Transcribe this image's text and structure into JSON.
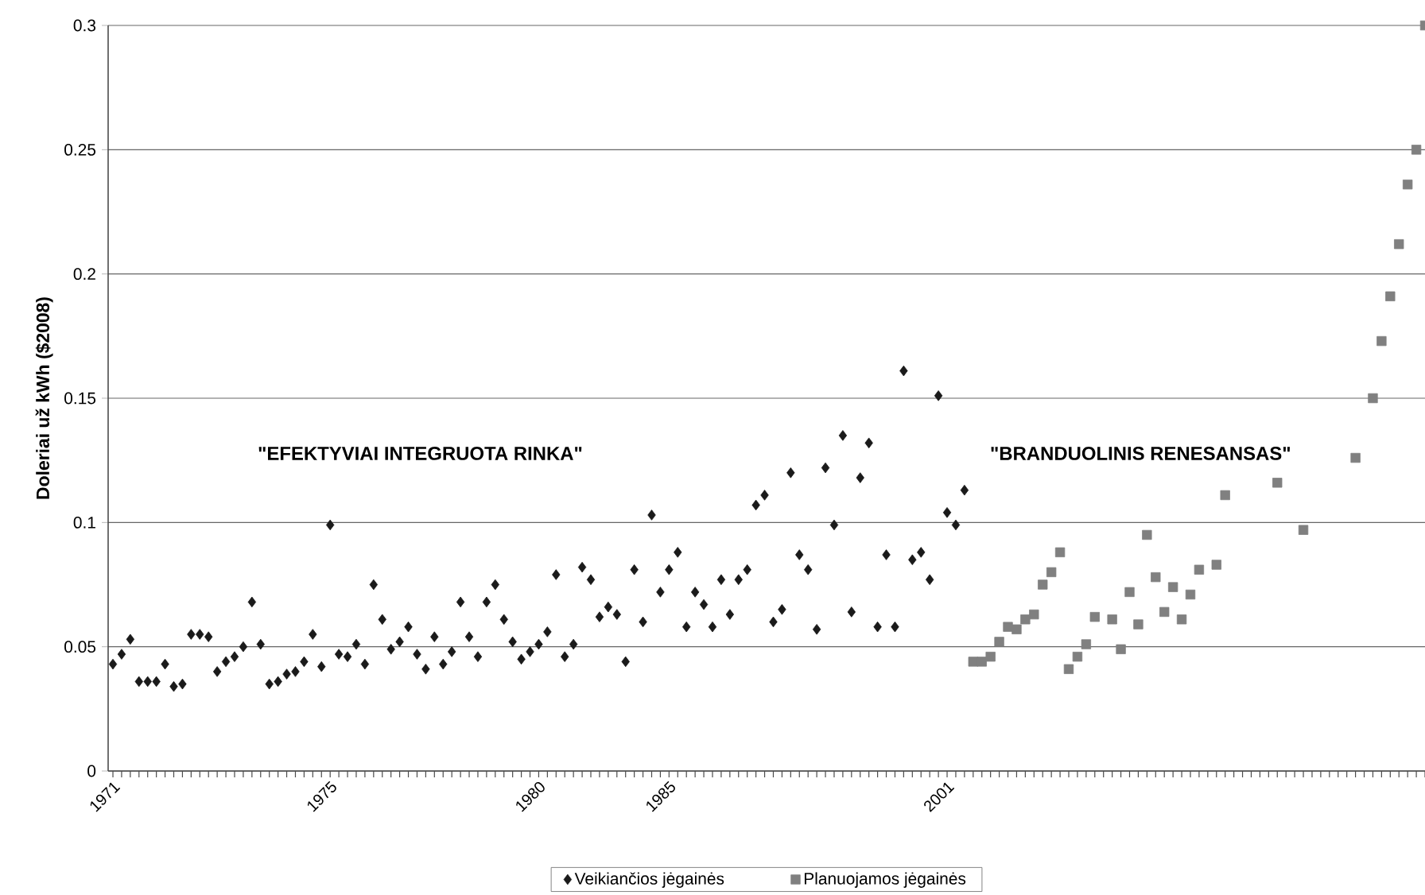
{
  "chart_data": {
    "type": "scatter",
    "ylabel": "Doleriai už kWh ($2008)",
    "categories": [
      "1971",
      null,
      null,
      null,
      null,
      null,
      null,
      null,
      null,
      null,
      null,
      null,
      null,
      null,
      null,
      null,
      null,
      null,
      null,
      null,
      null,
      null,
      null,
      null,
      null,
      "1975",
      null,
      null,
      null,
      null,
      null,
      null,
      null,
      null,
      null,
      null,
      null,
      null,
      null,
      null,
      null,
      null,
      null,
      null,
      null,
      null,
      null,
      null,
      null,
      "1980",
      null,
      null,
      null,
      null,
      null,
      null,
      null,
      null,
      null,
      null,
      null,
      null,
      null,
      null,
      "1985",
      null,
      null,
      null,
      null,
      null,
      null,
      null,
      null,
      null,
      null,
      null,
      null,
      null,
      null,
      null,
      null,
      null,
      null,
      null,
      null,
      null,
      null,
      null,
      null,
      null,
      null,
      null,
      null,
      null,
      null,
      null,
      "2001",
      null,
      null,
      null,
      null,
      null,
      null,
      null,
      null,
      null,
      null,
      null,
      null,
      null,
      null,
      null,
      null,
      null,
      null,
      null,
      null,
      null,
      null,
      null,
      null,
      null,
      null,
      null,
      null,
      null,
      null,
      null,
      null,
      null,
      null,
      null,
      null,
      null,
      null,
      null,
      null,
      null,
      null,
      null,
      null,
      null,
      null,
      null,
      null,
      null,
      null,
      null,
      null,
      null,
      null,
      null
    ],
    "series": [
      {
        "name": "Veikiančios jėgainės",
        "color": "#1a1a1a",
        "marker": "diamond",
        "values": [
          0.043,
          0.047,
          0.053,
          0.036,
          0.036,
          0.036,
          0.043,
          0.034,
          0.035,
          0.055,
          0.055,
          0.054,
          0.04,
          0.044,
          0.046,
          0.05,
          0.068,
          0.051,
          0.035,
          0.036,
          0.039,
          0.04,
          0.044,
          0.055,
          0.042,
          0.099,
          0.047,
          0.046,
          0.051,
          0.043,
          0.075,
          0.061,
          0.049,
          0.052,
          0.058,
          0.047,
          0.041,
          0.054,
          0.043,
          0.048,
          0.068,
          0.054,
          0.046,
          0.068,
          0.075,
          0.061,
          0.052,
          0.045,
          0.048,
          0.051,
          0.056,
          0.079,
          0.046,
          0.051,
          0.082,
          0.077,
          0.062,
          0.066,
          0.063,
          0.044,
          0.081,
          0.06,
          0.103,
          0.072,
          0.081,
          0.088,
          0.058,
          0.072,
          0.067,
          0.058,
          0.077,
          0.063,
          0.077,
          0.081,
          0.107,
          0.111,
          0.06,
          0.065,
          0.12,
          0.087,
          0.081,
          0.057,
          0.122,
          0.099,
          0.135,
          0.064,
          0.118,
          0.132,
          0.058,
          0.087,
          0.058,
          0.161,
          0.085,
          0.088,
          0.077,
          0.151,
          0.104,
          0.099,
          0.113,
          null,
          null,
          null,
          null,
          null,
          null,
          null,
          null,
          null,
          null,
          null,
          null,
          null,
          null,
          null,
          null,
          null,
          null,
          null,
          null,
          null,
          null,
          null,
          null,
          null,
          null,
          null,
          null,
          null,
          null,
          null,
          null,
          null,
          null,
          null,
          null,
          null,
          null,
          null,
          null,
          null,
          null,
          null,
          null,
          null,
          null,
          null,
          null,
          null,
          null,
          null,
          null,
          null
        ]
      },
      {
        "name": "Planuojamos jėgainės",
        "color": "#808080",
        "marker": "square",
        "values": [
          null,
          null,
          null,
          null,
          null,
          null,
          null,
          null,
          null,
          null,
          null,
          null,
          null,
          null,
          null,
          null,
          null,
          null,
          null,
          null,
          null,
          null,
          null,
          null,
          null,
          null,
          null,
          null,
          null,
          null,
          null,
          null,
          null,
          null,
          null,
          null,
          null,
          null,
          null,
          null,
          null,
          null,
          null,
          null,
          null,
          null,
          null,
          null,
          null,
          null,
          null,
          null,
          null,
          null,
          null,
          null,
          null,
          null,
          null,
          null,
          null,
          null,
          null,
          null,
          null,
          null,
          null,
          null,
          null,
          null,
          null,
          null,
          null,
          null,
          null,
          null,
          null,
          null,
          null,
          null,
          null,
          null,
          null,
          null,
          null,
          null,
          null,
          null,
          null,
          null,
          null,
          null,
          null,
          null,
          null,
          null,
          null,
          null,
          null,
          0.044,
          0.044,
          0.046,
          0.052,
          0.058,
          0.057,
          0.061,
          0.063,
          0.075,
          0.08,
          0.088,
          0.041,
          0.046,
          0.051,
          0.062,
          null,
          0.061,
          0.049,
          0.072,
          0.059,
          0.095,
          0.078,
          0.064,
          0.074,
          0.061,
          0.071,
          0.081,
          null,
          0.083,
          0.111,
          null,
          null,
          null,
          null,
          null,
          0.116,
          null,
          null,
          0.097,
          null,
          null,
          null,
          null,
          null,
          0.126,
          null,
          0.15,
          0.173,
          0.191,
          0.212,
          0.236,
          0.25,
          0.3
        ]
      }
    ],
    "ylim": [
      0,
      0.3
    ],
    "yticks": [
      0,
      0.05,
      0.1,
      0.15,
      0.2,
      0.25,
      0.3
    ],
    "grid": "y",
    "legend": "bottom",
    "annotations": [
      "\"EFEKTYVIAI INTEGRUOTA RINKA\"",
      "\"BRANDUOLINIS RENESANSAS\""
    ]
  }
}
